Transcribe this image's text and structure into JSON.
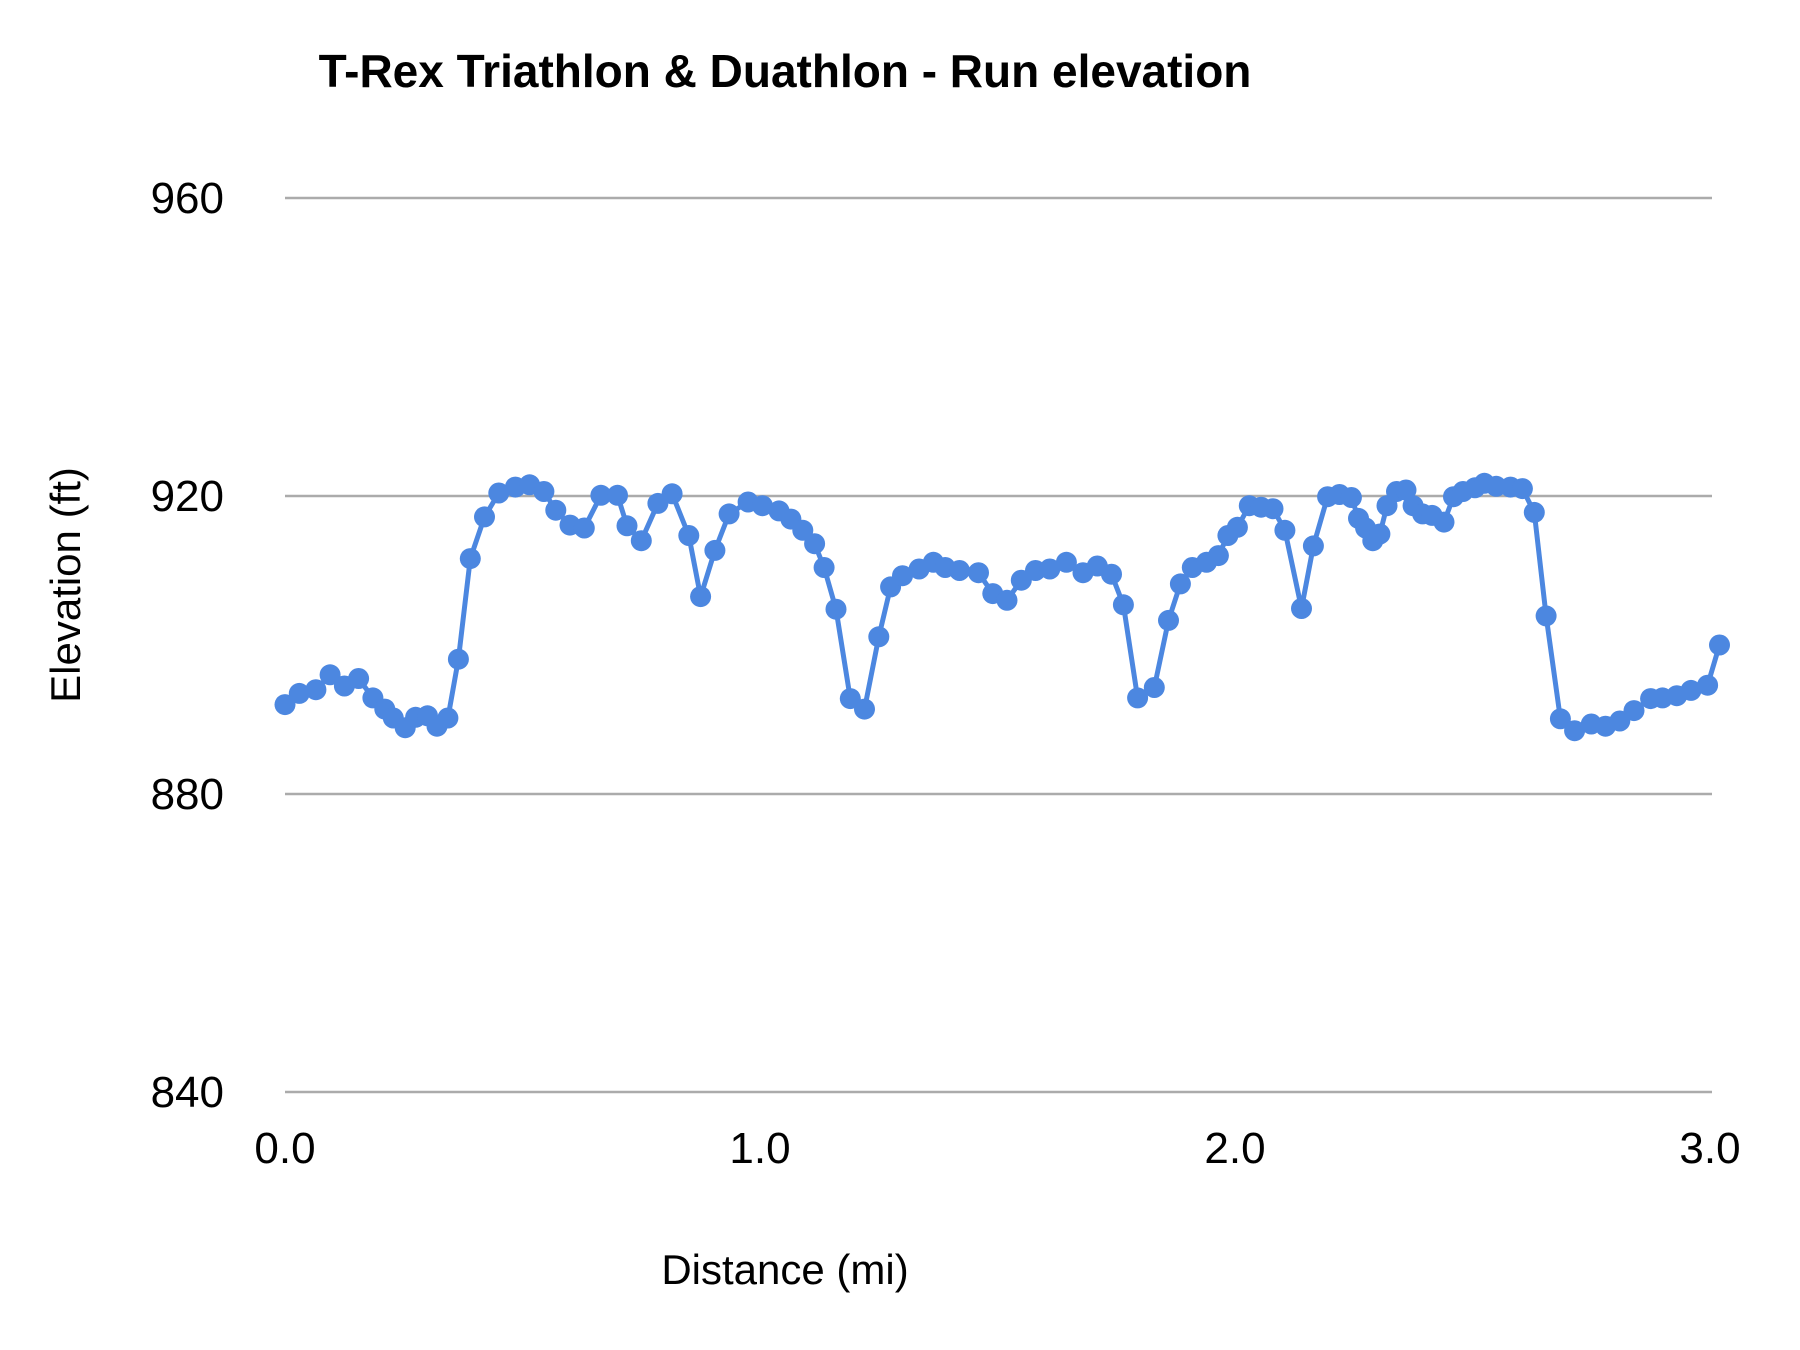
{
  "chart_data": {
    "type": "line",
    "title": "T-Rex Triathlon & Duathlon - Run elevation",
    "xlabel": "Distance (mi)",
    "ylabel": "Elevation (ft)",
    "legend": "none",
    "grid": "horizontal",
    "xlim": [
      0,
      3.02
    ],
    "ylim": [
      840,
      960
    ],
    "x_ticks": [
      {
        "value": 0,
        "label": "0.0"
      },
      {
        "value": 1,
        "label": "1.0"
      },
      {
        "value": 2,
        "label": "2.0"
      },
      {
        "value": 3,
        "label": "3.0"
      }
    ],
    "y_ticks": [
      {
        "value": 960,
        "label": "960"
      },
      {
        "value": 920,
        "label": "920"
      },
      {
        "value": 880,
        "label": "880"
      },
      {
        "value": 840,
        "label": "840"
      }
    ],
    "series": [
      {
        "name": "Run elevation",
        "color": "#4c87e0",
        "marker": "circle",
        "points": [
          [
            0.0,
            892
          ],
          [
            0.03,
            893.5
          ],
          [
            0.065,
            894
          ],
          [
            0.095,
            896
          ],
          [
            0.125,
            894.5
          ],
          [
            0.155,
            895.5
          ],
          [
            0.185,
            892.9
          ],
          [
            0.21,
            891.4
          ],
          [
            0.228,
            890.2
          ],
          [
            0.253,
            888.9
          ],
          [
            0.275,
            890.3
          ],
          [
            0.3,
            890.5
          ],
          [
            0.32,
            889.1
          ],
          [
            0.343,
            890.2
          ],
          [
            0.365,
            898.1
          ],
          [
            0.39,
            911.6
          ],
          [
            0.42,
            917.2
          ],
          [
            0.45,
            920.4
          ],
          [
            0.485,
            921.2
          ],
          [
            0.515,
            921.5
          ],
          [
            0.545,
            920.6
          ],
          [
            0.57,
            918.1
          ],
          [
            0.6,
            916.1
          ],
          [
            0.63,
            915.7
          ],
          [
            0.665,
            920.1
          ],
          [
            0.7,
            920.1
          ],
          [
            0.72,
            916
          ],
          [
            0.75,
            914
          ],
          [
            0.785,
            919
          ],
          [
            0.815,
            920.3
          ],
          [
            0.85,
            914.7
          ],
          [
            0.875,
            906.5
          ],
          [
            0.905,
            912.7
          ],
          [
            0.935,
            917.6
          ],
          [
            0.975,
            919.2
          ],
          [
            1.005,
            918.7
          ],
          [
            1.04,
            918
          ],
          [
            1.065,
            916.9
          ],
          [
            1.09,
            915.4
          ],
          [
            1.115,
            913.6
          ],
          [
            1.135,
            910.4
          ],
          [
            1.16,
            904.8
          ],
          [
            1.19,
            892.8
          ],
          [
            1.22,
            891.4
          ],
          [
            1.25,
            901.1
          ],
          [
            1.275,
            907.8
          ],
          [
            1.3,
            909.3
          ],
          [
            1.335,
            910.2
          ],
          [
            1.365,
            911.1
          ],
          [
            1.39,
            910.4
          ],
          [
            1.42,
            910
          ],
          [
            1.46,
            909.7
          ],
          [
            1.49,
            906.9
          ],
          [
            1.52,
            906
          ],
          [
            1.55,
            908.7
          ],
          [
            1.58,
            910
          ],
          [
            1.61,
            910.2
          ],
          [
            1.645,
            911.1
          ],
          [
            1.68,
            909.7
          ],
          [
            1.71,
            910.6
          ],
          [
            1.74,
            909.5
          ],
          [
            1.765,
            905.4
          ],
          [
            1.795,
            892.9
          ],
          [
            1.83,
            894.3
          ],
          [
            1.86,
            903.3
          ],
          [
            1.885,
            908.2
          ],
          [
            1.91,
            910.4
          ],
          [
            1.94,
            911.1
          ],
          [
            1.965,
            912
          ],
          [
            1.985,
            914.7
          ],
          [
            2.005,
            915.8
          ],
          [
            2.03,
            918.7
          ],
          [
            2.055,
            918.5
          ],
          [
            2.08,
            918.3
          ],
          [
            2.105,
            915.4
          ],
          [
            2.14,
            904.9
          ],
          [
            2.165,
            913.3
          ],
          [
            2.195,
            919.9
          ],
          [
            2.22,
            920.2
          ],
          [
            2.245,
            919.8
          ],
          [
            2.26,
            917
          ],
          [
            2.275,
            915.7
          ],
          [
            2.29,
            914
          ],
          [
            2.305,
            914.9
          ],
          [
            2.32,
            918.7
          ],
          [
            2.34,
            920.6
          ],
          [
            2.36,
            920.8
          ],
          [
            2.375,
            918.7
          ],
          [
            2.395,
            917.6
          ],
          [
            2.415,
            917.4
          ],
          [
            2.44,
            916.5
          ],
          [
            2.46,
            919.9
          ],
          [
            2.48,
            920.6
          ],
          [
            2.505,
            921.1
          ],
          [
            2.525,
            921.7
          ],
          [
            2.55,
            921.3
          ],
          [
            2.58,
            921.2
          ],
          [
            2.605,
            921
          ],
          [
            2.63,
            917.8
          ],
          [
            2.655,
            903.9
          ],
          [
            2.685,
            890.1
          ],
          [
            2.715,
            888.5
          ],
          [
            2.75,
            889.4
          ],
          [
            2.78,
            889.1
          ],
          [
            2.81,
            889.8
          ],
          [
            2.84,
            891.2
          ],
          [
            2.875,
            892.8
          ],
          [
            2.9,
            892.9
          ],
          [
            2.93,
            893.2
          ],
          [
            2.96,
            893.9
          ],
          [
            2.995,
            894.6
          ],
          [
            3.02,
            900
          ]
        ]
      }
    ],
    "style": {
      "line_color": "#4c87e0",
      "marker_radius": 10.5,
      "line_width": 5,
      "gridline_color": "#ababab",
      "tick_label_color": "#000000",
      "background": "#ffffff"
    }
  }
}
